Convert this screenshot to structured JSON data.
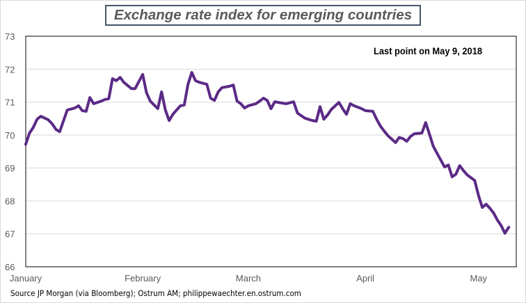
{
  "chart_data": {
    "type": "line",
    "title": "Exchange rate index for emerging countries",
    "annotation": "Last point on May 9, 2018",
    "source": "Source JP Morgan (via Bloomberg); Ostrum AM; philippewaechter.en.ostrum.com",
    "xlabel": "",
    "ylabel": "",
    "ylim": [
      66,
      73
    ],
    "yticks": [
      "66",
      "67",
      "68",
      "69",
      "70",
      "71",
      "72",
      "73"
    ],
    "xlim": [
      "2018-01-01",
      "2018-05-11"
    ],
    "xticks": [
      {
        "label": "January",
        "date": "2018-01-01"
      },
      {
        "label": "February",
        "date": "2018-02-01"
      },
      {
        "label": "March",
        "date": "2018-03-01"
      },
      {
        "label": "April",
        "date": "2018-04-01"
      },
      {
        "label": "May",
        "date": "2018-05-01"
      }
    ],
    "grid": true,
    "line_color": "#5b2a86",
    "series": [
      {
        "points": [
          [
            "2018-01-01",
            69.72
          ],
          [
            "2018-01-02",
            70.06
          ],
          [
            "2018-01-03",
            70.23
          ],
          [
            "2018-01-04",
            70.48
          ],
          [
            "2018-01-05",
            70.57
          ],
          [
            "2018-01-07",
            70.46
          ],
          [
            "2018-01-08",
            70.34
          ],
          [
            "2018-01-09",
            70.17
          ],
          [
            "2018-01-10",
            70.1
          ],
          [
            "2018-01-12",
            70.76
          ],
          [
            "2018-01-14",
            70.82
          ],
          [
            "2018-01-15",
            70.89
          ],
          [
            "2018-01-16",
            70.74
          ],
          [
            "2018-01-17",
            70.72
          ],
          [
            "2018-01-18",
            71.14
          ],
          [
            "2018-01-19",
            70.95
          ],
          [
            "2018-01-21",
            71.03
          ],
          [
            "2018-01-22",
            71.08
          ],
          [
            "2018-01-23",
            71.1
          ],
          [
            "2018-01-24",
            71.71
          ],
          [
            "2018-01-25",
            71.65
          ],
          [
            "2018-01-26",
            71.75
          ],
          [
            "2018-01-27",
            71.6
          ],
          [
            "2018-01-29",
            71.41
          ],
          [
            "2018-01-30",
            71.41
          ],
          [
            "2018-01-31",
            71.63
          ],
          [
            "2018-02-01",
            71.84
          ],
          [
            "2018-02-02",
            71.29
          ],
          [
            "2018-02-03",
            71.03
          ],
          [
            "2018-02-05",
            70.8
          ],
          [
            "2018-02-06",
            71.31
          ],
          [
            "2018-02-07",
            70.76
          ],
          [
            "2018-02-08",
            70.44
          ],
          [
            "2018-02-09",
            70.63
          ],
          [
            "2018-02-10",
            70.76
          ],
          [
            "2018-02-11",
            70.89
          ],
          [
            "2018-02-12",
            70.91
          ],
          [
            "2018-02-13",
            71.54
          ],
          [
            "2018-02-14",
            71.9
          ],
          [
            "2018-02-15",
            71.65
          ],
          [
            "2018-02-16",
            71.6
          ],
          [
            "2018-02-18",
            71.54
          ],
          [
            "2018-02-19",
            71.12
          ],
          [
            "2018-02-20",
            71.05
          ],
          [
            "2018-02-21",
            71.31
          ],
          [
            "2018-02-22",
            71.44
          ],
          [
            "2018-02-24",
            71.48
          ],
          [
            "2018-02-25",
            71.52
          ],
          [
            "2018-02-26",
            71.03
          ],
          [
            "2018-02-27",
            70.95
          ],
          [
            "2018-02-28",
            70.82
          ],
          [
            "2018-03-01",
            70.89
          ],
          [
            "2018-03-03",
            70.95
          ],
          [
            "2018-03-04",
            71.03
          ],
          [
            "2018-03-05",
            71.12
          ],
          [
            "2018-03-06",
            71.05
          ],
          [
            "2018-03-07",
            70.8
          ],
          [
            "2018-03-08",
            71.01
          ],
          [
            "2018-03-10",
            70.97
          ],
          [
            "2018-03-11",
            70.95
          ],
          [
            "2018-03-13",
            71.01
          ],
          [
            "2018-03-14",
            70.67
          ],
          [
            "2018-03-15",
            70.59
          ],
          [
            "2018-03-16",
            70.51
          ],
          [
            "2018-03-18",
            70.44
          ],
          [
            "2018-03-19",
            70.42
          ],
          [
            "2018-03-20",
            70.86
          ],
          [
            "2018-03-21",
            70.48
          ],
          [
            "2018-03-22",
            70.61
          ],
          [
            "2018-03-23",
            70.78
          ],
          [
            "2018-03-25",
            70.99
          ],
          [
            "2018-03-26",
            70.8
          ],
          [
            "2018-03-27",
            70.63
          ],
          [
            "2018-03-28",
            70.95
          ],
          [
            "2018-03-29",
            70.89
          ],
          [
            "2018-03-31",
            70.8
          ],
          [
            "2018-04-01",
            70.74
          ],
          [
            "2018-04-03",
            70.72
          ],
          [
            "2018-04-04",
            70.48
          ],
          [
            "2018-04-05",
            70.27
          ],
          [
            "2018-04-06",
            70.12
          ],
          [
            "2018-04-07",
            69.98
          ],
          [
            "2018-04-09",
            69.77
          ],
          [
            "2018-04-10",
            69.93
          ],
          [
            "2018-04-11",
            69.89
          ],
          [
            "2018-04-12",
            69.81
          ],
          [
            "2018-04-13",
            69.96
          ],
          [
            "2018-04-14",
            70.04
          ],
          [
            "2018-04-16",
            70.06
          ],
          [
            "2018-04-17",
            70.38
          ],
          [
            "2018-04-18",
            70.02
          ],
          [
            "2018-04-19",
            69.66
          ],
          [
            "2018-04-20",
            69.45
          ],
          [
            "2018-04-21",
            69.24
          ],
          [
            "2018-04-22",
            69.03
          ],
          [
            "2018-04-23",
            69.09
          ],
          [
            "2018-04-24",
            68.73
          ],
          [
            "2018-04-25",
            68.81
          ],
          [
            "2018-04-26",
            69.07
          ],
          [
            "2018-04-27",
            68.92
          ],
          [
            "2018-04-28",
            68.79
          ],
          [
            "2018-04-30",
            68.62
          ],
          [
            "2018-05-01",
            68.16
          ],
          [
            "2018-05-02",
            67.8
          ],
          [
            "2018-05-03",
            67.9
          ],
          [
            "2018-05-04",
            67.78
          ],
          [
            "2018-05-05",
            67.63
          ],
          [
            "2018-05-06",
            67.42
          ],
          [
            "2018-05-07",
            67.25
          ],
          [
            "2018-05-08",
            67.02
          ],
          [
            "2018-05-09",
            67.2
          ]
        ]
      }
    ]
  }
}
